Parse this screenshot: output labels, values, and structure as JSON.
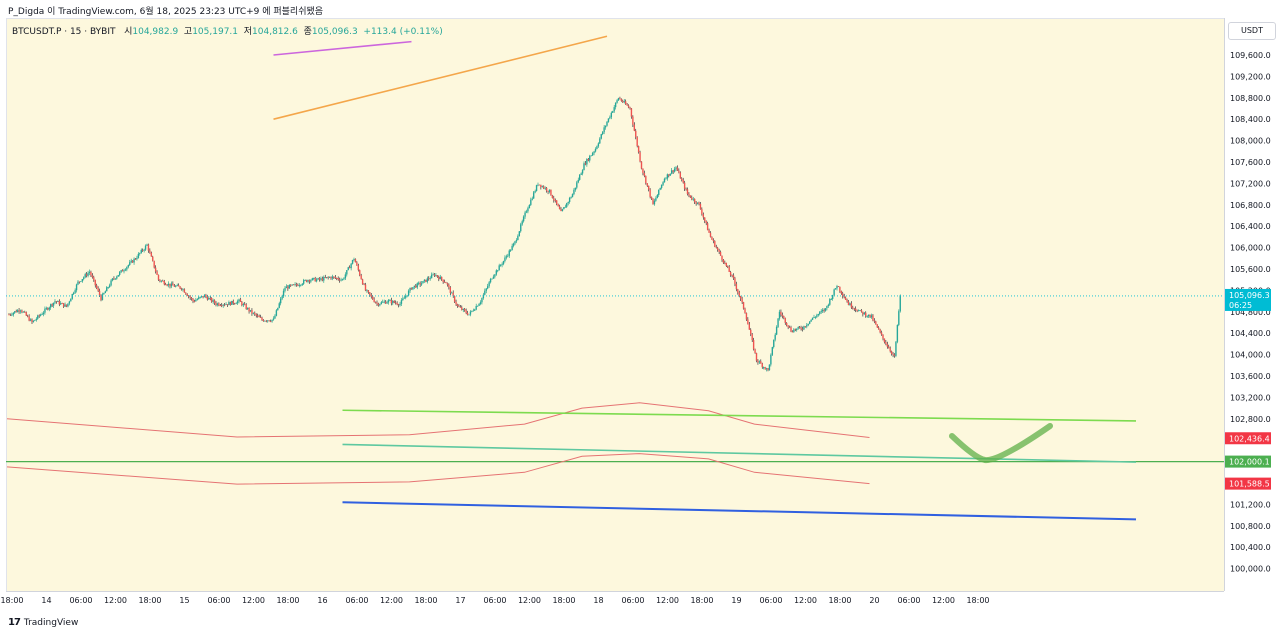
{
  "header": {
    "credit": "P_Digda 이 TradingView.com, 6월 18, 2025 23:23 UTC+9 에 퍼블리쉬됐음"
  },
  "legend": {
    "symbol": "BTCUSDT.P · 15 · BYBIT",
    "open_label": "시",
    "open": "104,982.9",
    "high_label": "고",
    "high": "105,197.1",
    "low_label": "저",
    "low": "104,812.6",
    "close_label": "종",
    "close": "105,096.3",
    "change": "+113.4 (+0.11%)"
  },
  "price_axis": {
    "currency": "USDT",
    "ticks": [
      "109,600.0",
      "109,200.0",
      "108,800.0",
      "108,400.0",
      "108,000.0",
      "107,600.0",
      "107,200.0",
      "106,800.0",
      "106,400.0",
      "106,000.0",
      "105,600.0",
      "105,200.0",
      "104,800.0",
      "104,400.0",
      "104,000.0",
      "103,600.0",
      "103,200.0",
      "102,800.0",
      "102,400.0",
      "102,000.0",
      "101,600.0",
      "101,200.0",
      "100,800.0",
      "100,400.0",
      "100,000.0"
    ],
    "labels": [
      {
        "text": "105,096.3",
        "sub": "06:25",
        "value": 105096.3,
        "color": "#00bcd4"
      },
      {
        "text": "102,436.4",
        "value": 102436.4,
        "color": "#f23645"
      },
      {
        "text": "102,000.1",
        "value": 102000.1,
        "color": "#4caf50"
      },
      {
        "text": "101,588.5",
        "value": 101588.5,
        "color": "#f23645"
      }
    ]
  },
  "time_axis": {
    "ticks": [
      "18:00",
      "14",
      "06:00",
      "12:00",
      "18:00",
      "15",
      "06:00",
      "12:00",
      "18:00",
      "16",
      "06:00",
      "12:00",
      "18:00",
      "17",
      "06:00",
      "12:00",
      "18:00",
      "18",
      "06:00",
      "12:00",
      "18:00",
      "19",
      "06:00",
      "12:00",
      "18:00",
      "20",
      "06:00",
      "12:00",
      "18:00"
    ]
  },
  "footer": {
    "brand": "TradingView"
  },
  "chart_data": {
    "type": "candlestick",
    "title": "BTCUSDT.P · 15 · BYBIT",
    "ylim": [
      99800,
      109800
    ],
    "x_range_hours": [
      0,
      144
    ],
    "last_price": 105096.3,
    "close_path": [
      [
        0,
        104750
      ],
      [
        2,
        104850
      ],
      [
        4,
        104600
      ],
      [
        6,
        104800
      ],
      [
        8,
        105000
      ],
      [
        10,
        104900
      ],
      [
        12,
        105350
      ],
      [
        14,
        105550
      ],
      [
        16,
        105050
      ],
      [
        18,
        105400
      ],
      [
        20,
        105600
      ],
      [
        22,
        105800
      ],
      [
        24,
        106050
      ],
      [
        26,
        105400
      ],
      [
        28,
        105300
      ],
      [
        30,
        105250
      ],
      [
        32,
        105000
      ],
      [
        34,
        105100
      ],
      [
        36,
        104950
      ],
      [
        38,
        104950
      ],
      [
        40,
        105000
      ],
      [
        42,
        104800
      ],
      [
        44,
        104650
      ],
      [
        46,
        104650
      ],
      [
        48,
        105250
      ],
      [
        50,
        105300
      ],
      [
        52,
        105400
      ],
      [
        54,
        105400
      ],
      [
        56,
        105450
      ],
      [
        58,
        105400
      ],
      [
        60,
        105800
      ],
      [
        62,
        105200
      ],
      [
        64,
        104950
      ],
      [
        66,
        105000
      ],
      [
        68,
        104950
      ],
      [
        70,
        105250
      ],
      [
        72,
        105350
      ],
      [
        74,
        105500
      ],
      [
        76,
        105350
      ],
      [
        78,
        104900
      ],
      [
        80,
        104750
      ],
      [
        82,
        105000
      ],
      [
        84,
        105450
      ],
      [
        86,
        105750
      ],
      [
        88,
        106100
      ],
      [
        90,
        106700
      ],
      [
        92,
        107200
      ],
      [
        94,
        107050
      ],
      [
        96,
        106650
      ],
      [
        98,
        107000
      ],
      [
        100,
        107550
      ],
      [
        102,
        107850
      ],
      [
        104,
        108350
      ],
      [
        106,
        108800
      ],
      [
        108,
        108600
      ],
      [
        110,
        107500
      ],
      [
        112,
        106800
      ],
      [
        114,
        107300
      ],
      [
        116,
        107500
      ],
      [
        118,
        107000
      ],
      [
        120,
        106800
      ],
      [
        122,
        106200
      ],
      [
        124,
        105800
      ],
      [
        126,
        105400
      ],
      [
        128,
        104800
      ],
      [
        130,
        103900
      ],
      [
        132,
        103700
      ],
      [
        134,
        104800
      ],
      [
        136,
        104450
      ],
      [
        138,
        104500
      ],
      [
        140,
        104700
      ],
      [
        142,
        104850
      ],
      [
        144,
        105300
      ],
      [
        146,
        104950
      ],
      [
        148,
        104800
      ],
      [
        150,
        104700
      ],
      [
        152,
        104300
      ],
      [
        154,
        103950
      ],
      [
        155,
        105096.3
      ]
    ],
    "series": [
      {
        "name": "",
        "kind": "horizontal-level",
        "value": 102000.1,
        "color": "#4caf50"
      },
      {
        "name": "",
        "kind": "band-upper",
        "color": "#e57373",
        "points": [
          [
            0,
            102800
          ],
          [
            40,
            102460
          ],
          [
            70,
            102500
          ],
          [
            90,
            102700
          ],
          [
            100,
            103000
          ],
          [
            110,
            103100
          ],
          [
            122,
            102950
          ],
          [
            130,
            102700
          ],
          [
            150,
            102450
          ]
        ]
      },
      {
        "name": "",
        "kind": "band-lower",
        "color": "#e57373",
        "points": [
          [
            0,
            101900
          ],
          [
            40,
            101580
          ],
          [
            70,
            101620
          ],
          [
            90,
            101800
          ],
          [
            100,
            102100
          ],
          [
            110,
            102150
          ],
          [
            122,
            102050
          ],
          [
            130,
            101800
          ],
          [
            150,
            101588
          ]
        ]
      }
    ],
    "trendlines": [
      {
        "color": "#cc66dd",
        "from": [
          46,
          109600
        ],
        "to": [
          70,
          109850
        ]
      },
      {
        "color": "#f4a64a",
        "from": [
          46,
          108400
        ],
        "to": [
          104,
          109950
        ]
      },
      {
        "color": "#7ddb4f",
        "from": [
          58,
          102960
        ],
        "to": [
          196,
          102760
        ]
      },
      {
        "color": "#5ec8a0",
        "from": [
          58,
          102320
        ],
        "to": [
          196,
          101990
        ]
      },
      {
        "color": "#3060e0",
        "from": [
          58,
          101240
        ],
        "to": [
          196,
          100920
        ]
      }
    ],
    "annotation": {
      "type": "check-mark",
      "color": "#5fb048"
    }
  }
}
